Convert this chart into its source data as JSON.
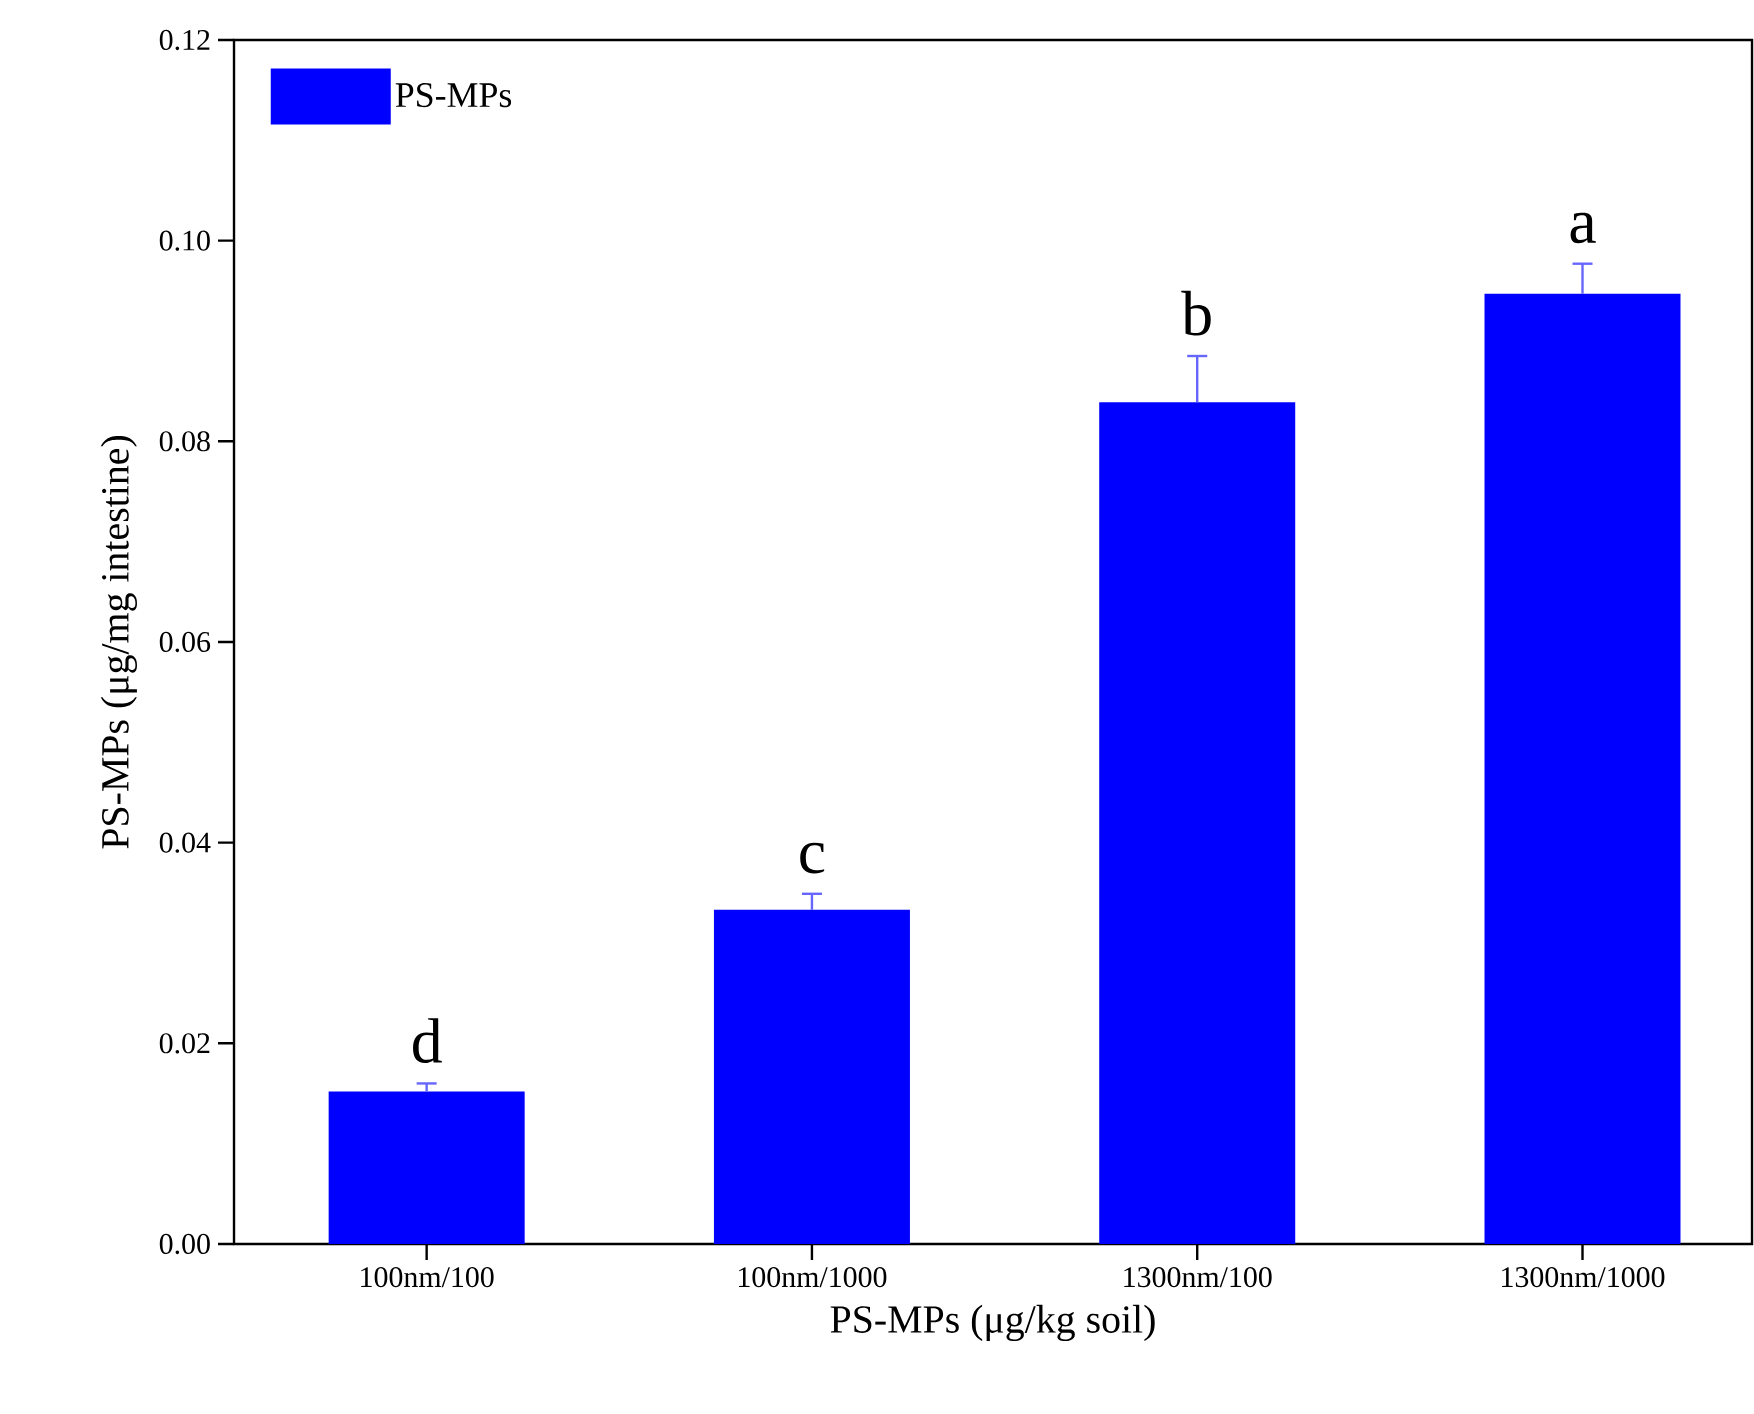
{
  "chart_data": {
    "type": "bar",
    "xlabel": "PS-MPs  (μg/kg soil)",
    "ylabel": "PS-MPs (μg/mg intestine)",
    "categories": [
      "100nm/100",
      "100nm/1000",
      "1300nm/100",
      "1300nm/1000"
    ],
    "series": [
      {
        "name": "PS-MPs",
        "color": "#0000ff",
        "values": [
          0.0152,
          0.0333,
          0.0839,
          0.0947
        ],
        "errors": [
          0.0008,
          0.0016,
          0.0046,
          0.003
        ]
      }
    ],
    "ylim": [
      0,
      0.12
    ],
    "yticks": [
      {
        "value": 0,
        "label": "0.00"
      },
      {
        "value": 0.02,
        "label": "0.02"
      },
      {
        "value": 0.04,
        "label": "0.04"
      },
      {
        "value": 0.06,
        "label": "0.06"
      },
      {
        "value": 0.08,
        "label": "0.08"
      },
      {
        "value": 0.1,
        "label": "0.10"
      },
      {
        "value": 0.12,
        "label": "0.12"
      }
    ],
    "annotations": [
      "d",
      "c",
      "b",
      "a"
    ],
    "legend": "top left",
    "grid": false
  }
}
